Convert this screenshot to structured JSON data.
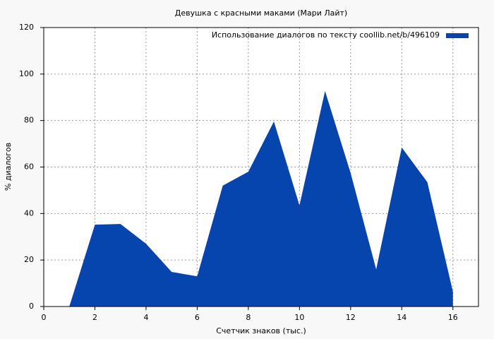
{
  "chart_data": {
    "type": "area",
    "title": "Девушка с красными маками (Мари Лайт)",
    "x_label": "Счетчик знаков (тыс.)",
    "y_label": "% диалогов",
    "x": [
      1,
      2,
      3,
      4,
      5,
      6,
      7,
      8,
      9,
      10,
      11,
      12,
      13,
      14,
      15,
      16
    ],
    "series": [
      {
        "name": "Использование диалогов по тексту  coollib.net/b/496109",
        "color": "#0645ad",
        "values": [
          0,
          35.2,
          35.5,
          27,
          14.9,
          13,
          52,
          58,
          79.6,
          43.5,
          92.7,
          57.4,
          16,
          68.4,
          53.5,
          6.4
        ]
      }
    ],
    "xlim": [
      0,
      17
    ],
    "xticks": [
      0,
      2,
      4,
      6,
      8,
      10,
      12,
      14,
      16
    ],
    "ylim": [
      0,
      120
    ],
    "yticks": [
      0,
      20,
      40,
      60,
      80,
      100,
      120
    ],
    "grid": true,
    "legend": "top-right"
  }
}
